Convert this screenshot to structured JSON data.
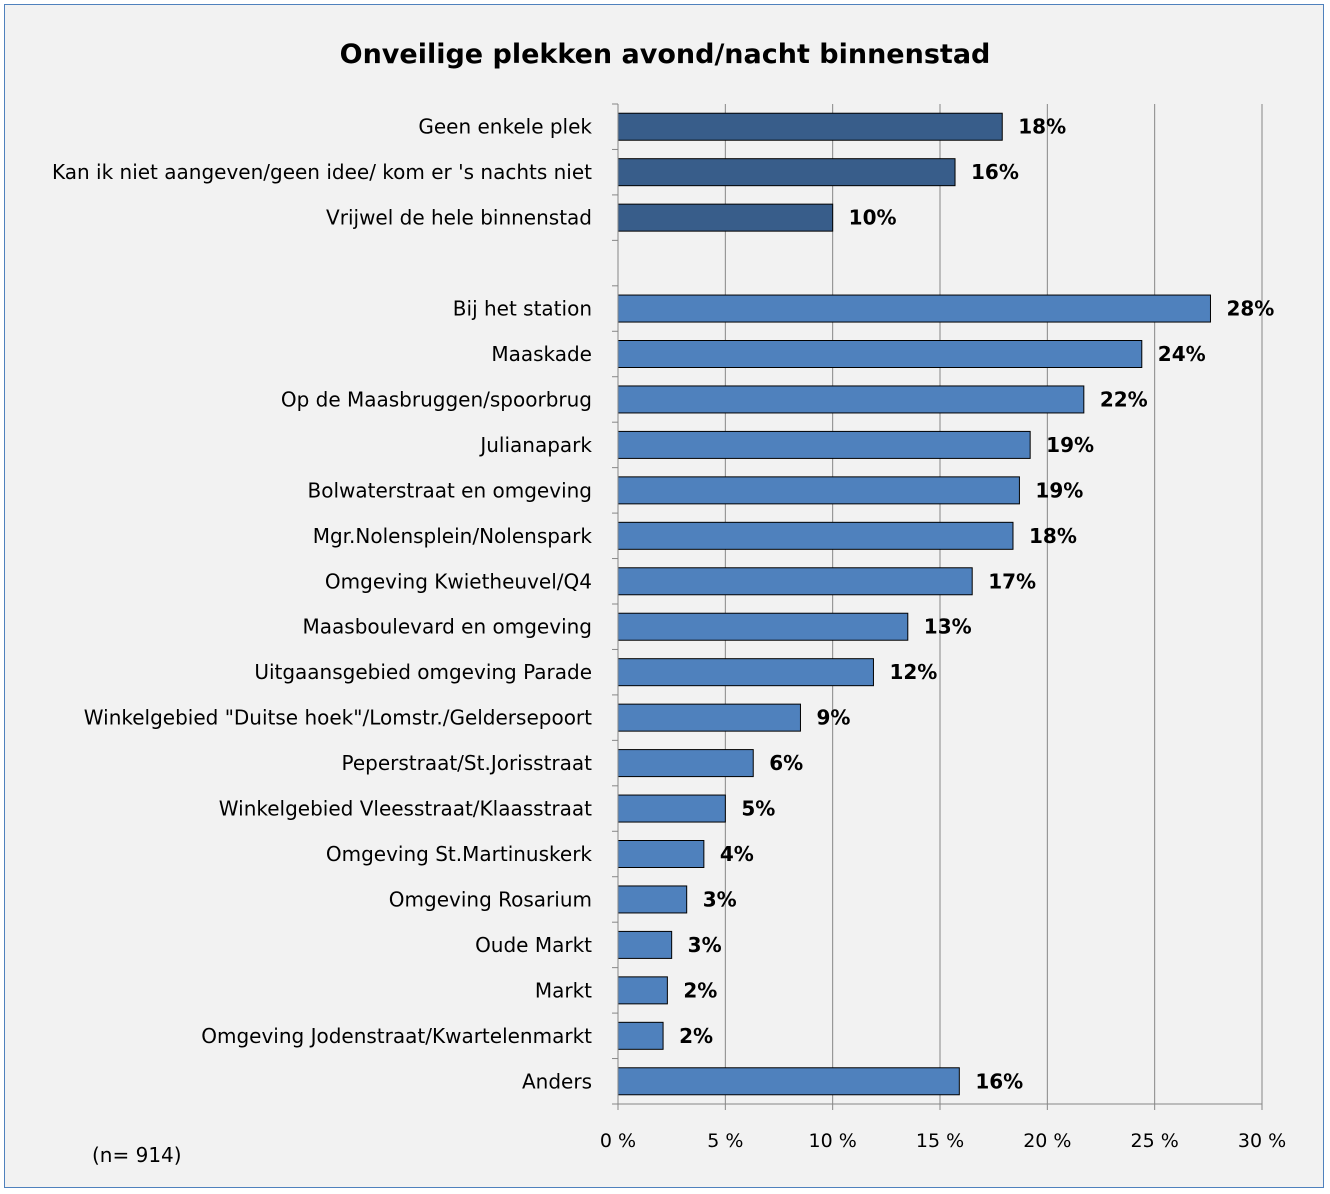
{
  "chart_data": {
    "type": "bar",
    "orientation": "horizontal",
    "title": "Onveilige plekken avond/nacht binnenstad",
    "note": "(n=  914)",
    "categories": [
      "Geen enkele plek",
      "Kan ik niet aangeven/geen idee/ kom er 's nachts niet",
      "Vrijwel de hele binnenstad",
      "",
      "Bij het station",
      "Maaskade",
      "Op de Maasbruggen/spoorbrug",
      "Julianapark",
      "Bolwaterstraat en omgeving",
      "Mgr.Nolensplein/Nolenspark",
      "Omgeving Kwietheuvel/Q4",
      "Maasboulevard en omgeving",
      "Uitgaansgebied omgeving Parade",
      "Winkelgebied \"Duitse hoek\"/Lomstr./Geldersepoort",
      "Peperstraat/St.Jorisstraat",
      "Winkelgebied Vleesstraat/Klaasstraat",
      "Omgeving St.Martinuskerk",
      "Omgeving Rosarium",
      "Oude Markt",
      "Markt",
      "Omgeving Jodenstraat/Kwartelenmarkt",
      "Anders"
    ],
    "values": [
      17.9,
      15.7,
      10.0,
      null,
      27.6,
      24.4,
      21.7,
      19.2,
      18.7,
      18.4,
      16.5,
      13.5,
      11.9,
      8.5,
      6.3,
      5.0,
      4.0,
      3.2,
      2.5,
      2.3,
      2.1,
      15.9
    ],
    "value_labels": [
      "18%",
      "16%",
      "10%",
      "",
      "28%",
      "24%",
      "22%",
      "19%",
      "19%",
      "18%",
      "17%",
      "13%",
      "12%",
      "9%",
      "6%",
      "5%",
      "4%",
      "3%",
      "3%",
      "2%",
      "2%",
      "16%"
    ],
    "bar_colors": [
      "#385d8a",
      "#385d8a",
      "#385d8a",
      "",
      "#4f81bd",
      "#4f81bd",
      "#4f81bd",
      "#4f81bd",
      "#4f81bd",
      "#4f81bd",
      "#4f81bd",
      "#4f81bd",
      "#4f81bd",
      "#4f81bd",
      "#4f81bd",
      "#4f81bd",
      "#4f81bd",
      "#4f81bd",
      "#4f81bd",
      "#4f81bd",
      "#4f81bd",
      "#4f81bd"
    ],
    "xlim": [
      0,
      30
    ],
    "x_ticks": [
      0,
      5,
      10,
      15,
      20,
      25,
      30
    ],
    "x_tick_labels": [
      "0 %",
      "5 %",
      "10 %",
      "15 %",
      "20 %",
      "25 %",
      "30 %"
    ],
    "grid": "vertical",
    "legend": "none"
  },
  "colors": {
    "background": "#f2f2f2",
    "frame_border": "#4f81bd",
    "bar_outline": "#000000",
    "gridline": "#868686"
  }
}
